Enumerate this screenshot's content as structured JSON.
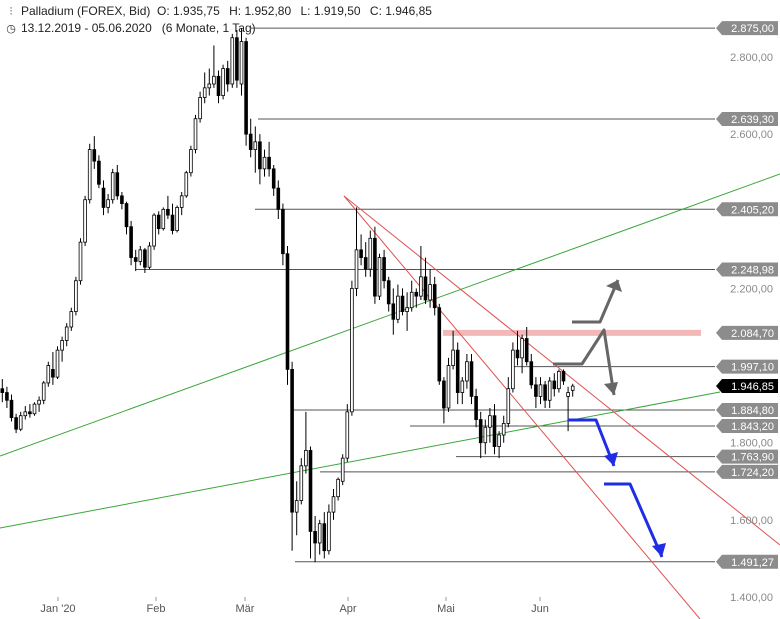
{
  "header": {
    "instrument": "Palladium (FOREX, Bid)",
    "open": "O: 1.935,75",
    "high": "H: 1.952,80",
    "low": "L: 1.919,50",
    "close": "C: 1.946,85",
    "date_range": "13.12.2019 - 05.06.2020",
    "period": "(6 Monate, 1 Tag)",
    "instrument_icon": "bar-chart-icon",
    "clock_icon": "clock-icon"
  },
  "chart_data": {
    "type": "candlestick",
    "x_axis": {
      "tick_labels": [
        "Jan '20",
        "Feb",
        "Mär",
        "Apr",
        "Mai",
        "Jun"
      ]
    },
    "y_axis": {
      "tick_labels": [
        "2.800,00",
        "2.600,00",
        "2.200,00",
        "1.800,00",
        "1.600,00",
        "1.400,00"
      ],
      "tick_values": [
        2800,
        2600,
        2200,
        1800,
        1600,
        1400
      ],
      "range": [
        1365,
        2895
      ]
    },
    "price_labels": [
      {
        "text": "2.875,00",
        "value": 2875,
        "style": "gray"
      },
      {
        "text": "2.639,30",
        "value": 2639.3,
        "style": "gray"
      },
      {
        "text": "2.405,20",
        "value": 2405.2,
        "style": "gray"
      },
      {
        "text": "2.248,98",
        "value": 2248.98,
        "style": "gray"
      },
      {
        "text": "2.084,70",
        "value": 2084.7,
        "style": "gray"
      },
      {
        "text": "1.997,10",
        "value": 1997.1,
        "style": "gray"
      },
      {
        "text": "1.946,85",
        "value": 1946.85,
        "style": "black"
      },
      {
        "text": "1.884,80",
        "value": 1884.8,
        "style": "gray"
      },
      {
        "text": "1.843,20",
        "value": 1843.2,
        "style": "gray"
      },
      {
        "text": "1.763,90",
        "value": 1763.9,
        "style": "gray"
      },
      {
        "text": "1.724,20",
        "value": 1724.2,
        "style": "gray"
      },
      {
        "text": "1.491,27",
        "value": 1491.27,
        "style": "gray"
      }
    ],
    "candles": [
      [
        1940,
        1965,
        1905,
        1930
      ],
      [
        1930,
        1945,
        1890,
        1910
      ],
      [
        1910,
        1925,
        1855,
        1865
      ],
      [
        1865,
        1875,
        1825,
        1835
      ],
      [
        1835,
        1880,
        1830,
        1870
      ],
      [
        1870,
        1895,
        1860,
        1880
      ],
      [
        1880,
        1900,
        1865,
        1875
      ],
      [
        1875,
        1905,
        1870,
        1900
      ],
      [
        1900,
        1920,
        1880,
        1910
      ],
      [
        1910,
        1960,
        1900,
        1955
      ],
      [
        1955,
        2010,
        1945,
        2000
      ],
      [
        1990,
        2035,
        1950,
        1970
      ],
      [
        1970,
        2050,
        1965,
        2040
      ],
      [
        2040,
        2075,
        2010,
        2065
      ],
      [
        2065,
        2110,
        2050,
        2100
      ],
      [
        2100,
        2150,
        2090,
        2140
      ],
      [
        2140,
        2230,
        2130,
        2220
      ],
      [
        2220,
        2330,
        2210,
        2320
      ],
      [
        2320,
        2440,
        2310,
        2430
      ],
      [
        2430,
        2575,
        2420,
        2560
      ],
      [
        2560,
        2595,
        2510,
        2530
      ],
      [
        2530,
        2545,
        2460,
        2470
      ],
      [
        2460,
        2480,
        2390,
        2410
      ],
      [
        2410,
        2445,
        2395,
        2430
      ],
      [
        2430,
        2510,
        2420,
        2500
      ],
      [
        2500,
        2520,
        2430,
        2440
      ],
      [
        2440,
        2450,
        2405,
        2420
      ],
      [
        2420,
        2425,
        2340,
        2360
      ],
      [
        2360,
        2375,
        2260,
        2280
      ],
      [
        2280,
        2300,
        2245,
        2270
      ],
      [
        2270,
        2310,
        2260,
        2300
      ],
      [
        2300,
        2305,
        2240,
        2255
      ],
      [
        2255,
        2320,
        2250,
        2310
      ],
      [
        2310,
        2395,
        2300,
        2390
      ],
      [
        2390,
        2400,
        2340,
        2355
      ],
      [
        2355,
        2410,
        2350,
        2405
      ],
      [
        2405,
        2440,
        2380,
        2390
      ],
      [
        2390,
        2420,
        2340,
        2350
      ],
      [
        2350,
        2415,
        2345,
        2410
      ],
      [
        2410,
        2450,
        2390,
        2440
      ],
      [
        2440,
        2505,
        2435,
        2500
      ],
      [
        2500,
        2570,
        2490,
        2560
      ],
      [
        2560,
        2650,
        2550,
        2640
      ],
      [
        2640,
        2710,
        2630,
        2695
      ],
      [
        2695,
        2760,
        2680,
        2720
      ],
      [
        2720,
        2770,
        2700,
        2730
      ],
      [
        2730,
        2830,
        2720,
        2750
      ],
      [
        2750,
        2765,
        2680,
        2700
      ],
      [
        2700,
        2780,
        2690,
        2770
      ],
      [
        2770,
        2790,
        2710,
        2730
      ],
      [
        2730,
        2860,
        2720,
        2850
      ],
      [
        2850,
        2870,
        2720,
        2740
      ],
      [
        2730,
        2875,
        2700,
        2840
      ],
      [
        2840,
        2850,
        2570,
        2600
      ],
      [
        2600,
        2640,
        2540,
        2560
      ],
      [
        2560,
        2620,
        2500,
        2580
      ],
      [
        2580,
        2600,
        2470,
        2510
      ],
      [
        2510,
        2560,
        2490,
        2540
      ],
      [
        2540,
        2580,
        2490,
        2510
      ],
      [
        2510,
        2520,
        2440,
        2460
      ],
      [
        2460,
        2480,
        2380,
        2405
      ],
      [
        2405,
        2420,
        2260,
        2290
      ],
      [
        2290,
        2310,
        1950,
        1990
      ],
      [
        1990,
        2010,
        1520,
        1620
      ],
      [
        1620,
        1700,
        1560,
        1650
      ],
      [
        1650,
        1760,
        1640,
        1740
      ],
      [
        1740,
        1880,
        1720,
        1780
      ],
      [
        1780,
        1790,
        1500,
        1570
      ],
      [
        1570,
        1610,
        1490,
        1540
      ],
      [
        1540,
        1600,
        1510,
        1590
      ],
      [
        1590,
        1620,
        1500,
        1520
      ],
      [
        1520,
        1640,
        1510,
        1620
      ],
      [
        1620,
        1680,
        1600,
        1660
      ],
      [
        1660,
        1710,
        1650,
        1705
      ],
      [
        1700,
        1770,
        1690,
        1760
      ],
      [
        1760,
        1900,
        1750,
        1880
      ],
      [
        1880,
        2220,
        1870,
        2200
      ],
      [
        2200,
        2410,
        2180,
        2300
      ],
      [
        2300,
        2340,
        2260,
        2280
      ],
      [
        2280,
        2320,
        2230,
        2250
      ],
      [
        2250,
        2350,
        2230,
        2330
      ],
      [
        2330,
        2360,
        2160,
        2180
      ],
      [
        2180,
        2290,
        2170,
        2280
      ],
      [
        2280,
        2300,
        2200,
        2220
      ],
      [
        2220,
        2230,
        2140,
        2160
      ],
      [
        2160,
        2200,
        2080,
        2120
      ],
      [
        2120,
        2210,
        2110,
        2180
      ],
      [
        2180,
        2200,
        2130,
        2140
      ],
      [
        2140,
        2190,
        2090,
        2150
      ],
      [
        2150,
        2220,
        2140,
        2190
      ],
      [
        2190,
        2200,
        2150,
        2180
      ],
      [
        2180,
        2310,
        2170,
        2230
      ],
      [
        2230,
        2280,
        2160,
        2170
      ],
      [
        2170,
        2250,
        2150,
        2210
      ],
      [
        2210,
        2230,
        2130,
        2150
      ],
      [
        2150,
        2160,
        1950,
        1960
      ],
      [
        1960,
        1970,
        1850,
        1890
      ],
      [
        1890,
        2020,
        1880,
        2000
      ],
      [
        2000,
        2090,
        1990,
        2040
      ],
      [
        2040,
        2060,
        1900,
        1930
      ],
      [
        1930,
        1970,
        1900,
        1960
      ],
      [
        1960,
        2030,
        1940,
        2010
      ],
      [
        2010,
        2030,
        1900,
        1920
      ],
      [
        1920,
        1940,
        1840,
        1860
      ],
      [
        1860,
        1880,
        1760,
        1800
      ],
      [
        1800,
        1860,
        1770,
        1840
      ],
      [
        1840,
        1890,
        1800,
        1870
      ],
      [
        1870,
        1900,
        1770,
        1790
      ],
      [
        1790,
        1830,
        1760,
        1820
      ],
      [
        1820,
        1870,
        1800,
        1850
      ],
      [
        1850,
        1970,
        1840,
        1940
      ],
      [
        1940,
        2060,
        1930,
        2040
      ],
      [
        2040,
        2090,
        2000,
        2020
      ],
      [
        2020,
        2080,
        1980,
        2070
      ],
      [
        2070,
        2100,
        2000,
        2010
      ],
      [
        2010,
        2030,
        1940,
        1950
      ],
      [
        1950,
        1970,
        1890,
        1920
      ],
      [
        1920,
        1970,
        1900,
        1950
      ],
      [
        1950,
        1960,
        1890,
        1910
      ],
      [
        1910,
        1970,
        1890,
        1960
      ],
      [
        1960,
        1980,
        1920,
        1940
      ],
      [
        1940,
        1990,
        1930,
        1985
      ],
      [
        1985,
        1990,
        1950,
        1960
      ],
      [
        1920,
        1945,
        1830,
        1930
      ],
      [
        1935.75,
        1952.8,
        1919.5,
        1946.85
      ]
    ],
    "level_lines": [
      2875,
      2639.3,
      2405.2,
      2248.98,
      1997.1,
      1884.8,
      1843.2,
      1763.9,
      1724.2,
      1491.27
    ],
    "resistance_zone": 2084.7,
    "trendlines": [
      {
        "color": "green"
      },
      {
        "color": "green"
      },
      {
        "color": "red"
      },
      {
        "color": "red"
      }
    ],
    "scenario_arrows": [
      {
        "color": "gray",
        "direction": "up"
      },
      {
        "color": "gray",
        "direction": "down"
      },
      {
        "color": "blue",
        "direction": "down"
      },
      {
        "color": "blue",
        "direction": "down"
      }
    ],
    "colors": {
      "green": "#3aa63a",
      "red": "#e05050",
      "zone": "#f2b8b8",
      "blue": "#1f2ee6",
      "gray": "#666666",
      "label_gray": "#8c8c8c",
      "label_black": "#000000"
    },
    "grid": false,
    "legend": "none"
  }
}
